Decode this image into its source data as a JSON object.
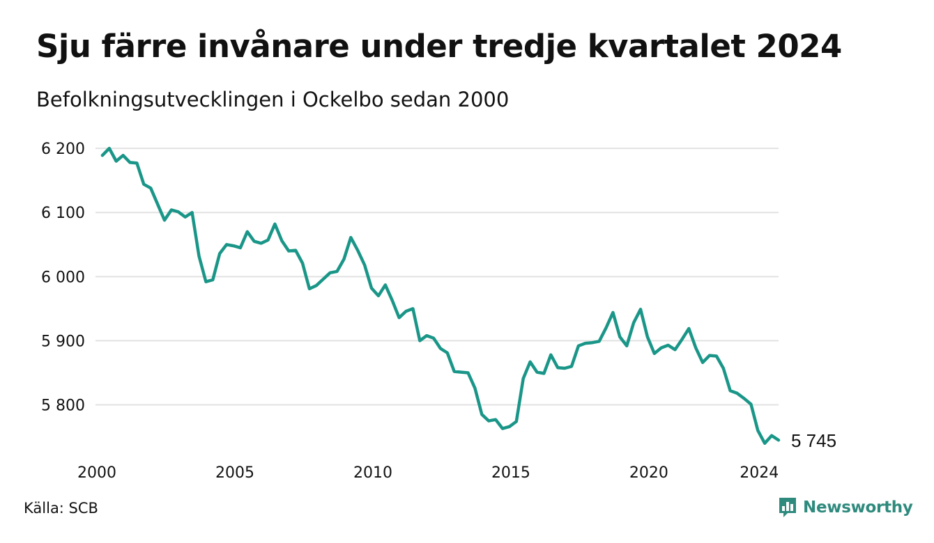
{
  "header": {
    "title": "Sju färre invånare under tredje kvartalet 2024",
    "subtitle": "Befolkningsutvecklingen i Ockelbo sedan 2000"
  },
  "footer": {
    "source": "Källa: SCB",
    "brand": "Newsworthy",
    "brand_icon": "bar-chart-icon"
  },
  "colors": {
    "line": "#1a9688",
    "grid": "#e2e2e2",
    "brand": "#2f8a7e"
  },
  "chart_data": {
    "type": "line",
    "title": "Sju färre invånare under tredje kvartalet 2024",
    "subtitle": "Befolkningsutvecklingen i Ockelbo sedan 2000",
    "xlabel": "",
    "ylabel": "",
    "xlim": [
      2000,
      2024.75
    ],
    "ylim": [
      5730,
      6205
    ],
    "grid": "horizontal",
    "y_ticks": [
      {
        "value": 6200,
        "label": "6 200"
      },
      {
        "value": 6100,
        "label": "6 100"
      },
      {
        "value": 6000,
        "label": "6 000"
      },
      {
        "value": 5900,
        "label": "5 900"
      },
      {
        "value": 5800,
        "label": "5 800"
      }
    ],
    "x_ticks": [
      {
        "value": 2000,
        "label": "2000"
      },
      {
        "value": 2005,
        "label": "2005"
      },
      {
        "value": 2010,
        "label": "2010"
      },
      {
        "value": 2015,
        "label": "2015"
      },
      {
        "value": 2020,
        "label": "2020"
      },
      {
        "value": 2024,
        "label": "2024"
      }
    ],
    "end_label": "5 745",
    "series": [
      {
        "x": [
          2000.25,
          2000.5,
          2000.75,
          2001.0,
          2001.25,
          2001.5,
          2001.75,
          2002.0,
          2002.25,
          2002.5,
          2002.75,
          2003.0,
          2003.25,
          2003.5,
          2003.75,
          2004.0,
          2004.25,
          2004.5,
          2004.75,
          2005.0,
          2005.25,
          2005.5,
          2005.75,
          2006.0,
          2006.25,
          2006.5,
          2006.75,
          2007.0,
          2007.25,
          2007.5,
          2007.75,
          2008.0,
          2008.25,
          2008.5,
          2008.75,
          2009.0,
          2009.25,
          2009.5,
          2009.75,
          2010.0,
          2010.25,
          2010.5,
          2010.75,
          2011.0,
          2011.25,
          2011.5,
          2011.75,
          2012.0,
          2012.25,
          2012.5,
          2012.75,
          2013.0,
          2013.25,
          2013.5,
          2013.75,
          2014.0,
          2014.25,
          2014.5,
          2014.75,
          2015.0,
          2015.25,
          2015.5,
          2015.75,
          2016.0,
          2016.25,
          2016.5,
          2016.75,
          2017.0,
          2017.25,
          2017.5,
          2017.75,
          2018.0,
          2018.25,
          2018.5,
          2018.75,
          2019.0,
          2019.25,
          2019.5,
          2019.75,
          2020.0,
          2020.25,
          2020.5,
          2020.75,
          2021.0,
          2021.25,
          2021.5,
          2021.75,
          2022.0,
          2022.25,
          2022.5,
          2022.75,
          2023.0,
          2023.25,
          2023.5,
          2023.75,
          2024.0,
          2024.25,
          2024.5,
          2024.75
        ],
        "values": [
          6189,
          6200,
          6180,
          6189,
          6178,
          6177,
          6144,
          6138,
          6113,
          6088,
          6104,
          6101,
          6093,
          6100,
          6032,
          5992,
          5995,
          6036,
          6050,
          6048,
          6045,
          6070,
          6055,
          6052,
          6057,
          6082,
          6056,
          6040,
          6041,
          6021,
          5981,
          5986,
          5996,
          6006,
          6008,
          6027,
          6061,
          6041,
          6018,
          5982,
          5970,
          5987,
          5963,
          5936,
          5946,
          5950,
          5900,
          5908,
          5904,
          5888,
          5881,
          5852,
          5851,
          5850,
          5826,
          5785,
          5775,
          5777,
          5763,
          5766,
          5774,
          5841,
          5867,
          5851,
          5849,
          5878,
          5858,
          5857,
          5860,
          5892,
          5896,
          5897,
          5899,
          5920,
          5944,
          5906,
          5892,
          5928,
          5949,
          5906,
          5880,
          5889,
          5893,
          5886,
          5902,
          5919,
          5889,
          5866,
          5877,
          5876,
          5857,
          5822,
          5818,
          5810,
          5801,
          5760,
          5740,
          5752,
          5745
        ]
      }
    ]
  }
}
